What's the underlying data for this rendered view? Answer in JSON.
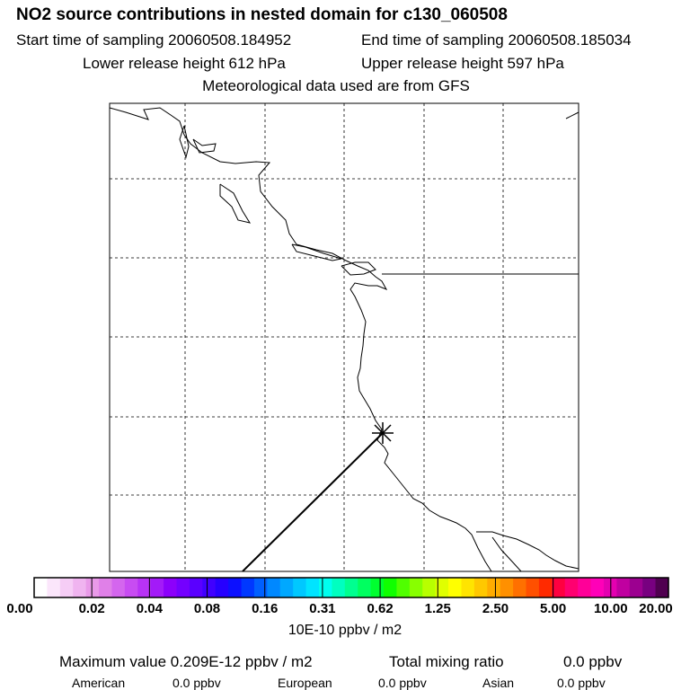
{
  "header": {
    "title": "NO2 source contributions in nested domain for c130_060508",
    "start_label": "Start time of sampling 20060508.184952",
    "end_label": "End time of sampling 20060508.185034",
    "lower_label": "Lower release height  612 hPa",
    "upper_label": "Upper release height  597 hPa",
    "met_label": "Meteorological data used are from GFS"
  },
  "colorbar": {
    "ticks": [
      "0.00",
      "0.02",
      "0.04",
      "0.08",
      "0.16",
      "0.31",
      "0.62",
      "1.25",
      "2.50",
      "5.00",
      "10.00",
      "20.00"
    ],
    "unit": "10E-10 ppbv / m2"
  },
  "stats": {
    "max_label": "Maximum value  0.209E-12 ppbv / m2",
    "total_label": "Total mixing ratio",
    "total_value": "0.0 ppbv",
    "american_label": "American",
    "american_value": "0.0 ppbv",
    "european_label": "European",
    "european_value": "0.0 ppbv",
    "asian_label": "Asian",
    "asian_value": "0.0 ppbv"
  },
  "colors": {
    "ramp": [
      "#ffffff",
      "#fbe6fb",
      "#f6cdf6",
      "#f0b4f0",
      "#e99ae9",
      "#e080e8",
      "#d466ee",
      "#c84cf2",
      "#b833f5",
      "#a31af8",
      "#8c00fb",
      "#7400ff",
      "#5a00ff",
      "#4000ff",
      "#2600ff",
      "#0c10ff",
      "#0038ff",
      "#0060ff",
      "#0088ff",
      "#00a8ff",
      "#00c8ff",
      "#00e4ff",
      "#00ffee",
      "#00ffc0",
      "#00ff90",
      "#00ff60",
      "#00ff30",
      "#10ff00",
      "#50ff00",
      "#88ff00",
      "#b8ff00",
      "#e0ff00",
      "#ffff00",
      "#ffe400",
      "#ffc800",
      "#ffac00",
      "#ff9000",
      "#ff7000",
      "#ff5000",
      "#ff2a00",
      "#ff0040",
      "#ff0070",
      "#ff0098",
      "#ff00b8",
      "#e400b0",
      "#c000a0",
      "#9c0090",
      "#780080",
      "#500050"
    ]
  }
}
